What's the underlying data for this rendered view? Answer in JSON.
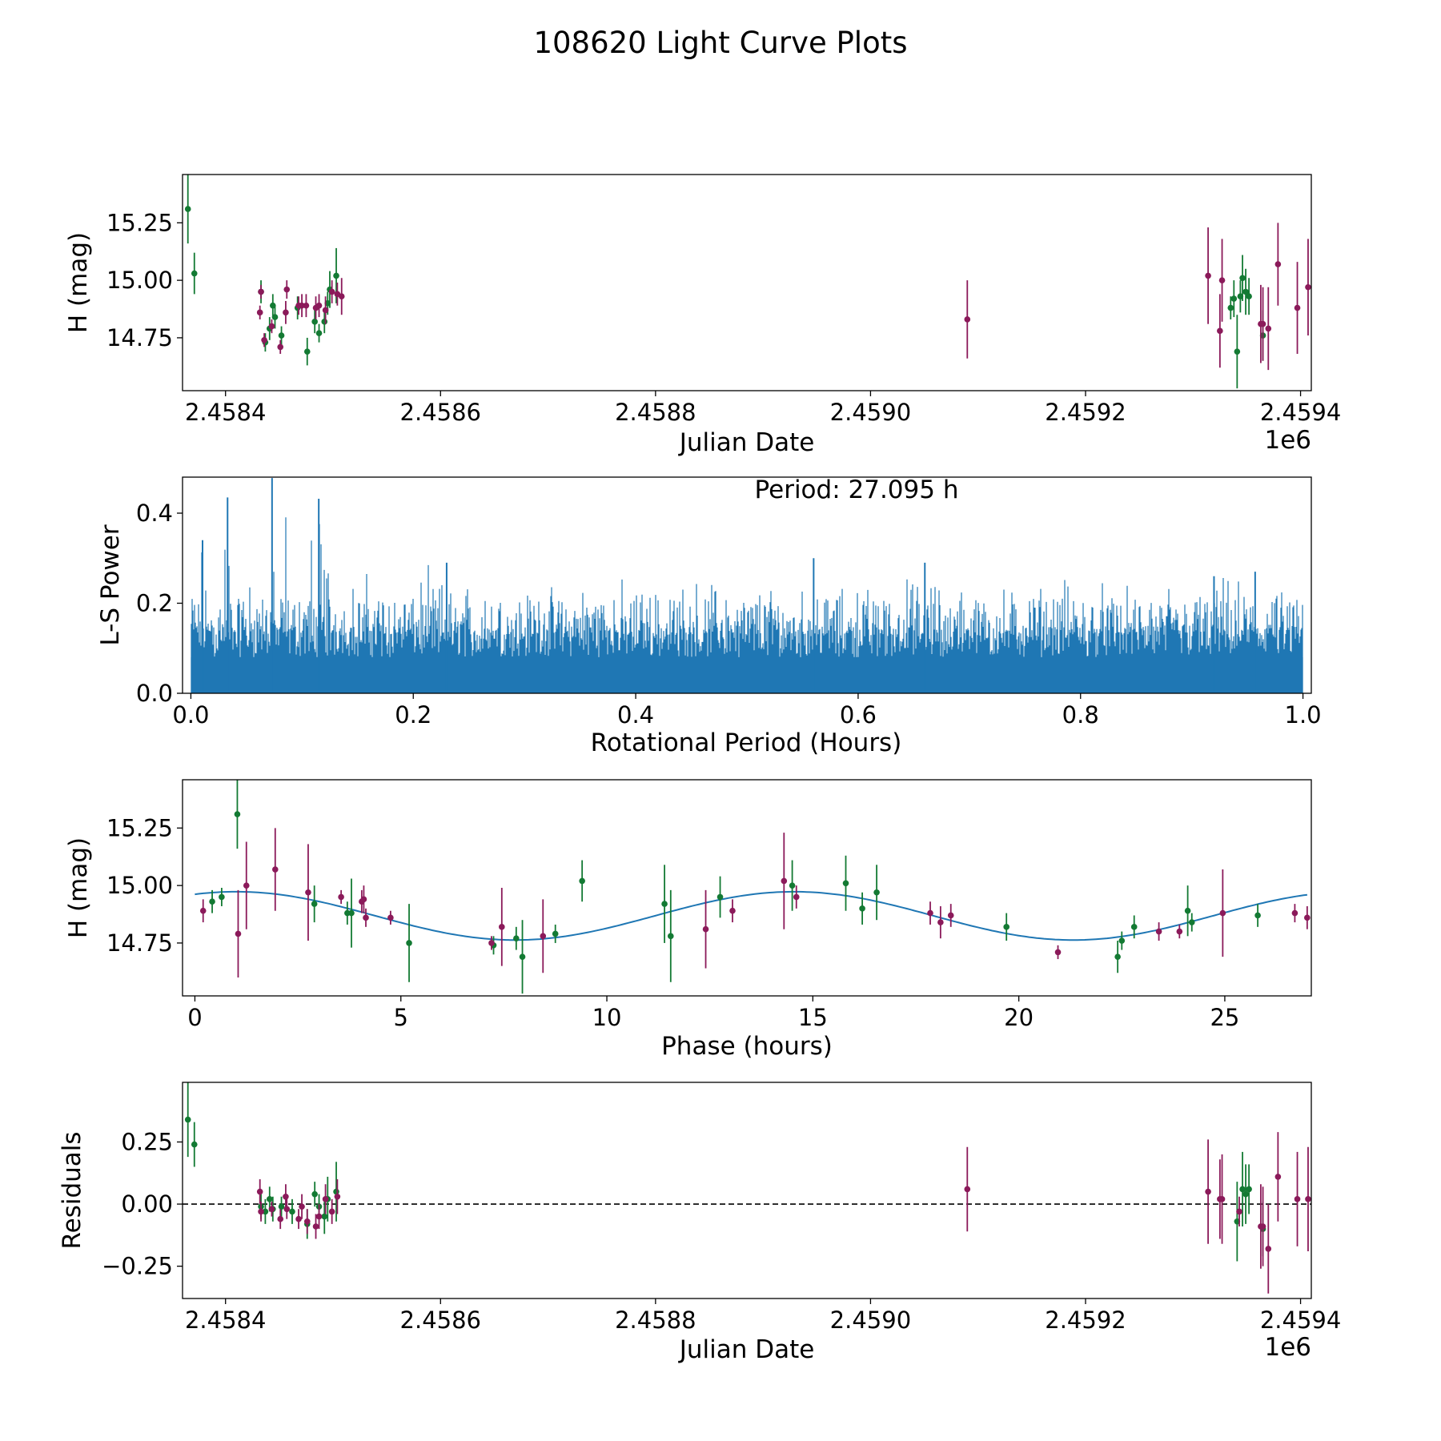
{
  "figure_title": "108620 Light Curve Plots",
  "colors": {
    "green": "#137a33",
    "magenta": "#8b1a5a",
    "line": "#1f77b4",
    "axis": "#000000"
  },
  "chart_data": [
    {
      "id": "lightcurve",
      "type": "scatter",
      "title": "",
      "xlabel": "Julian Date",
      "ylabel": "H (mag)",
      "x_offset_label": "1e6",
      "xlim": [
        2.45836,
        2.45941
      ],
      "ylim": [
        14.52,
        15.46
      ],
      "xticks": [
        2.4584,
        2.4586,
        2.4588,
        2.459,
        2.4592,
        2.4594
      ],
      "xtick_labels": [
        "2.4584",
        "2.4586",
        "2.4588",
        "2.4590",
        "2.4592",
        "2.4594"
      ],
      "yticks": [
        14.75,
        15.0,
        15.25
      ],
      "ytick_labels": [
        "14.75",
        "15.00",
        "15.25"
      ],
      "series": [
        {
          "name": "green",
          "points": [
            [
              2.458365,
              15.31,
              0.15
            ],
            [
              2.458371,
              15.03,
              0.09
            ],
            [
              2.458433,
              14.95,
              0.05
            ],
            [
              2.458437,
              14.73,
              0.04
            ],
            [
              2.458441,
              14.79,
              0.05
            ],
            [
              2.458444,
              14.89,
              0.05
            ],
            [
              2.458446,
              14.84,
              0.05
            ],
            [
              2.458452,
              14.76,
              0.04
            ],
            [
              2.458467,
              14.88,
              0.05
            ],
            [
              2.458476,
              14.69,
              0.06
            ],
            [
              2.458483,
              14.82,
              0.05
            ],
            [
              2.458487,
              14.77,
              0.04
            ],
            [
              2.458492,
              14.82,
              0.05
            ],
            [
              2.458495,
              14.9,
              0.05
            ],
            [
              2.458497,
              14.96,
              0.08
            ],
            [
              2.458503,
              15.02,
              0.12
            ],
            [
              2.459335,
              14.88,
              0.05
            ],
            [
              2.459338,
              14.92,
              0.08
            ],
            [
              2.459341,
              14.69,
              0.16
            ],
            [
              2.459344,
              14.93,
              0.07
            ],
            [
              2.459346,
              15.01,
              0.1
            ],
            [
              2.459349,
              14.95,
              0.1
            ],
            [
              2.459352,
              14.93,
              0.08
            ],
            [
              2.459365,
              14.76,
              0.11
            ]
          ]
        },
        {
          "name": "magenta",
          "points": [
            [
              2.458432,
              14.86,
              0.03
            ],
            [
              2.458433,
              14.95,
              0.03
            ],
            [
              2.458436,
              14.74,
              0.03
            ],
            [
              2.458443,
              14.8,
              0.03
            ],
            [
              2.458451,
              14.71,
              0.03
            ],
            [
              2.458456,
              14.86,
              0.05
            ],
            [
              2.458457,
              14.96,
              0.04
            ],
            [
              2.458468,
              14.89,
              0.04
            ],
            [
              2.458471,
              14.89,
              0.05
            ],
            [
              2.458475,
              14.89,
              0.05
            ],
            [
              2.458484,
              14.88,
              0.05
            ],
            [
              2.458487,
              14.89,
              0.05
            ],
            [
              2.458493,
              14.87,
              0.06
            ],
            [
              2.458499,
              14.95,
              0.05
            ],
            [
              2.458504,
              14.94,
              0.05
            ],
            [
              2.458508,
              14.93,
              0.08
            ],
            [
              2.45909,
              14.83,
              0.17
            ],
            [
              2.459314,
              15.02,
              0.21
            ],
            [
              2.459325,
              14.78,
              0.16
            ],
            [
              2.459327,
              15.0,
              0.18
            ],
            [
              2.459363,
              14.81,
              0.17
            ],
            [
              2.459365,
              14.81,
              0.16
            ],
            [
              2.45937,
              14.79,
              0.18
            ],
            [
              2.459379,
              15.07,
              0.18
            ],
            [
              2.459397,
              14.88,
              0.2
            ],
            [
              2.459407,
              14.97,
              0.21
            ]
          ]
        }
      ]
    },
    {
      "id": "periodogram",
      "type": "line",
      "title": "",
      "xlabel": "Rotational Period (Hours)",
      "ylabel": "L-S Power",
      "annotation": "Period: 27.095 h",
      "xlim": [
        -0.0075,
        1.0075
      ],
      "ylim": [
        0.0,
        0.48
      ],
      "xticks": [
        0.0,
        0.2,
        0.4,
        0.6,
        0.8,
        1.0
      ],
      "xtick_labels": [
        "0.0",
        "0.2",
        "0.4",
        "0.6",
        "0.8",
        "1.0"
      ],
      "yticks": [
        0.0,
        0.2,
        0.4
      ],
      "ytick_labels": [
        "0.0",
        "0.2",
        "0.4"
      ],
      "x_start": 0.0,
      "x_end": 1.0,
      "envelope_bins": 40,
      "envelope_max": [
        0.34,
        0.44,
        0.28,
        0.48,
        0.44,
        0.26,
        0.27,
        0.24,
        0.29,
        0.25,
        0.26,
        0.25,
        0.24,
        0.22,
        0.24,
        0.26,
        0.24,
        0.26,
        0.26,
        0.25,
        0.25,
        0.24,
        0.3,
        0.24,
        0.25,
        0.26,
        0.26,
        0.28,
        0.25,
        0.25,
        0.26,
        0.26,
        0.25,
        0.24,
        0.25,
        0.25,
        0.26,
        0.26,
        0.26,
        0.23
      ],
      "background_level": 0.13,
      "dense_level": 0.08,
      "peaks": [
        {
          "x": 0.033,
          "y": 0.435
        },
        {
          "x": 0.073,
          "y": 0.478
        },
        {
          "x": 0.115,
          "y": 0.432
        },
        {
          "x": 0.0105,
          "y": 0.34
        },
        {
          "x": 0.23,
          "y": 0.29
        },
        {
          "x": 0.56,
          "y": 0.3
        },
        {
          "x": 0.66,
          "y": 0.29
        },
        {
          "x": 0.92,
          "y": 0.26
        },
        {
          "x": 0.957,
          "y": 0.27
        }
      ]
    },
    {
      "id": "phasefold",
      "type": "scatter",
      "title": "",
      "xlabel": "Phase (hours)",
      "ylabel": "H (mag)",
      "xlim": [
        -0.3,
        27.1
      ],
      "ylim": [
        14.52,
        15.46
      ],
      "xticks": [
        0,
        5,
        10,
        15,
        20,
        25
      ],
      "xtick_labels": [
        "0",
        "5",
        "10",
        "15",
        "20",
        "25"
      ],
      "yticks": [
        14.75,
        15.0,
        15.25
      ],
      "ytick_labels": [
        "14.75",
        "15.00",
        "15.25"
      ],
      "model": {
        "mean": 14.868,
        "amplitude": 0.105,
        "peak_phase": 1.0,
        "period_h": 27.095,
        "x_range": [
          0.0,
          27.0
        ]
      },
      "series": [
        {
          "name": "green",
          "points": [
            [
              0.42,
              14.93,
              0.05
            ],
            [
              0.65,
              14.95,
              0.04
            ],
            [
              1.03,
              15.31,
              0.15
            ],
            [
              2.9,
              14.92,
              0.08
            ],
            [
              3.7,
              14.88,
              0.05
            ],
            [
              3.8,
              14.88,
              0.15
            ],
            [
              5.2,
              14.75,
              0.17
            ],
            [
              7.25,
              14.74,
              0.04
            ],
            [
              7.8,
              14.77,
              0.05
            ],
            [
              7.95,
              14.69,
              0.16
            ],
            [
              8.75,
              14.79,
              0.04
            ],
            [
              9.4,
              15.02,
              0.09
            ],
            [
              11.4,
              14.92,
              0.17
            ],
            [
              11.55,
              14.78,
              0.2
            ],
            [
              12.75,
              14.95,
              0.09
            ],
            [
              14.5,
              15.0,
              0.11
            ],
            [
              15.8,
              15.01,
              0.12
            ],
            [
              16.2,
              14.9,
              0.07
            ],
            [
              16.55,
              14.97,
              0.12
            ],
            [
              19.7,
              14.82,
              0.06
            ],
            [
              22.4,
              14.69,
              0.07
            ],
            [
              22.5,
              14.76,
              0.04
            ],
            [
              22.8,
              14.82,
              0.05
            ],
            [
              24.1,
              14.89,
              0.11
            ],
            [
              24.2,
              14.84,
              0.04
            ],
            [
              25.8,
              14.87,
              0.05
            ]
          ]
        },
        {
          "name": "magenta",
          "points": [
            [
              0.2,
              14.89,
              0.05
            ],
            [
              1.05,
              14.79,
              0.19
            ],
            [
              1.25,
              15.0,
              0.19
            ],
            [
              1.95,
              15.07,
              0.18
            ],
            [
              2.75,
              14.97,
              0.21
            ],
            [
              3.55,
              14.95,
              0.03
            ],
            [
              4.05,
              14.93,
              0.05
            ],
            [
              4.1,
              14.94,
              0.06
            ],
            [
              4.15,
              14.86,
              0.04
            ],
            [
              4.75,
              14.86,
              0.03
            ],
            [
              7.2,
              14.75,
              0.03
            ],
            [
              7.45,
              14.82,
              0.17
            ],
            [
              8.45,
              14.78,
              0.16
            ],
            [
              12.4,
              14.81,
              0.17
            ],
            [
              13.05,
              14.89,
              0.05
            ],
            [
              14.3,
              15.02,
              0.21
            ],
            [
              14.6,
              14.95,
              0.05
            ],
            [
              17.85,
              14.88,
              0.05
            ],
            [
              18.1,
              14.84,
              0.07
            ],
            [
              18.35,
              14.87,
              0.05
            ],
            [
              20.95,
              14.71,
              0.03
            ],
            [
              23.4,
              14.8,
              0.04
            ],
            [
              23.9,
              14.8,
              0.03
            ],
            [
              24.95,
              14.88,
              0.19
            ],
            [
              26.7,
              14.88,
              0.04
            ],
            [
              27.0,
              14.86,
              0.05
            ]
          ]
        }
      ]
    },
    {
      "id": "residuals",
      "type": "scatter",
      "title": "",
      "xlabel": "Julian Date",
      "ylabel": "Residuals",
      "x_offset_label": "1e6",
      "xlim": [
        2.45836,
        2.45941
      ],
      "ylim": [
        -0.38,
        0.49
      ],
      "xticks": [
        2.4584,
        2.4586,
        2.4588,
        2.459,
        2.4592,
        2.4594
      ],
      "xtick_labels": [
        "2.4584",
        "2.4586",
        "2.4588",
        "2.4590",
        "2.4592",
        "2.4594"
      ],
      "yticks": [
        -0.25,
        0.0,
        0.25
      ],
      "ytick_labels": [
        "−0.25",
        "0.00",
        "0.25"
      ],
      "zero_line": true,
      "series": [
        {
          "name": "green",
          "points": [
            [
              2.458365,
              0.34,
              0.15
            ],
            [
              2.458371,
              0.24,
              0.09
            ],
            [
              2.458433,
              -0.01,
              0.05
            ],
            [
              2.458437,
              -0.03,
              0.05
            ],
            [
              2.458441,
              0.02,
              0.05
            ],
            [
              2.458444,
              -0.02,
              0.05
            ],
            [
              2.458452,
              -0.01,
              0.04
            ],
            [
              2.458462,
              -0.03,
              0.05
            ],
            [
              2.458476,
              -0.08,
              0.06
            ],
            [
              2.458483,
              0.04,
              0.05
            ],
            [
              2.458487,
              -0.01,
              0.05
            ],
            [
              2.458492,
              -0.05,
              0.07
            ],
            [
              2.458495,
              0.02,
              0.09
            ],
            [
              2.458503,
              0.05,
              0.12
            ],
            [
              2.459341,
              -0.07,
              0.16
            ],
            [
              2.459346,
              0.06,
              0.15
            ],
            [
              2.459349,
              0.04,
              0.12
            ],
            [
              2.459352,
              0.06,
              0.1
            ],
            [
              2.459365,
              -0.1,
              0.11
            ]
          ]
        },
        {
          "name": "magenta",
          "points": [
            [
              2.458432,
              0.05,
              0.05
            ],
            [
              2.458433,
              -0.03,
              0.04
            ],
            [
              2.458443,
              -0.02,
              0.03
            ],
            [
              2.458451,
              -0.06,
              0.04
            ],
            [
              2.458456,
              0.03,
              0.05
            ],
            [
              2.458457,
              -0.02,
              0.04
            ],
            [
              2.458468,
              -0.06,
              0.04
            ],
            [
              2.458471,
              -0.01,
              0.05
            ],
            [
              2.458476,
              -0.07,
              0.05
            ],
            [
              2.458484,
              -0.09,
              0.05
            ],
            [
              2.458487,
              -0.05,
              0.05
            ],
            [
              2.458493,
              0.02,
              0.06
            ],
            [
              2.458499,
              -0.03,
              0.05
            ],
            [
              2.458504,
              0.03,
              0.07
            ],
            [
              2.45909,
              0.06,
              0.17
            ],
            [
              2.459314,
              0.05,
              0.21
            ],
            [
              2.459325,
              0.02,
              0.16
            ],
            [
              2.459327,
              0.02,
              0.18
            ],
            [
              2.459343,
              -0.03,
              0.06
            ],
            [
              2.459363,
              -0.09,
              0.17
            ],
            [
              2.459365,
              -0.09,
              0.16
            ],
            [
              2.45937,
              -0.18,
              0.18
            ],
            [
              2.459379,
              0.11,
              0.18
            ],
            [
              2.459397,
              0.02,
              0.19
            ],
            [
              2.459407,
              0.02,
              0.21
            ]
          ]
        }
      ]
    }
  ]
}
